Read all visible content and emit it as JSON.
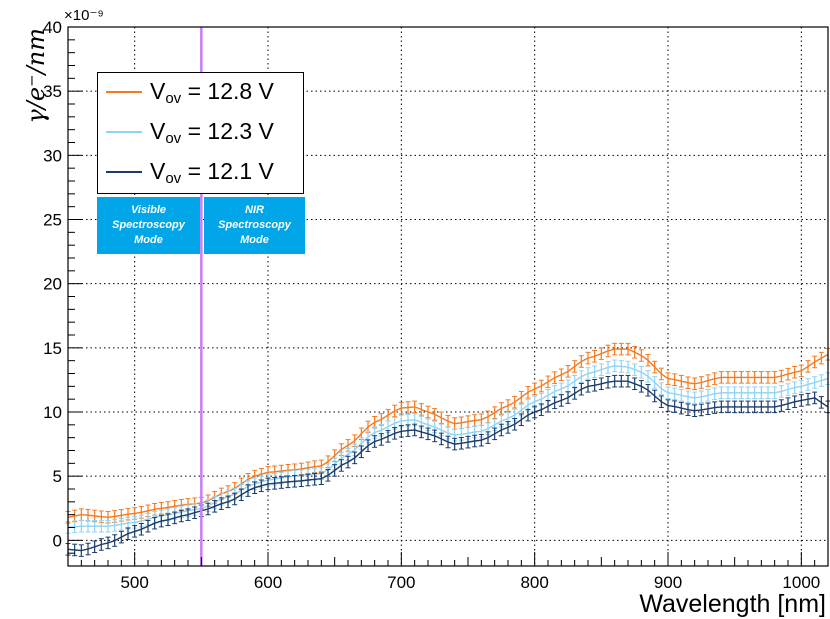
{
  "chart_data": {
    "type": "line",
    "title": "",
    "xlabel": "Wavelength [nm]",
    "ylabel": "γ/e⁻/nm",
    "y_multiplier": "×10⁻⁹",
    "xlim": [
      450,
      1020
    ],
    "ylim": [
      -2,
      40
    ],
    "x_ticks": [
      500,
      600,
      700,
      800,
      900,
      1000
    ],
    "y_ticks": [
      0,
      5,
      10,
      15,
      20,
      25,
      30,
      35,
      40
    ],
    "grid": true,
    "legend_position": "top-left",
    "vertical_marker": {
      "x": 550,
      "color": "#c77dff"
    },
    "annotations": [
      {
        "lines": [
          "Visible",
          "Spectroscopy",
          "Mode"
        ]
      },
      {
        "lines": [
          "NIR",
          "Spectroscopy",
          "Mode"
        ]
      }
    ],
    "knots_x": [
      450,
      460,
      480,
      500,
      520,
      540,
      550,
      570,
      590,
      600,
      620,
      640,
      660,
      680,
      700,
      710,
      720,
      740,
      760,
      780,
      800,
      820,
      840,
      860,
      870,
      880,
      900,
      920,
      940,
      960,
      980,
      1000,
      1010,
      1020
    ],
    "series": [
      {
        "name_main": "V",
        "name_sub": "ov",
        "name_rest": " = 12.8 V",
        "color": "#f57a1f",
        "y": [
          1.8,
          2.0,
          1.8,
          2.1,
          2.5,
          2.8,
          2.9,
          3.8,
          5.0,
          5.3,
          5.5,
          5.8,
          7.4,
          9.2,
          10.3,
          10.4,
          10.0,
          9.1,
          9.4,
          10.5,
          11.8,
          12.9,
          14.2,
          14.9,
          14.9,
          14.4,
          12.6,
          12.2,
          12.7,
          12.7,
          12.7,
          13.2,
          13.9,
          14.5
        ]
      },
      {
        "name_main": "V",
        "name_sub": "ov",
        "name_rest": " = 12.3 V",
        "color": "#8fd3f5",
        "y": [
          1.0,
          1.1,
          1.1,
          1.4,
          1.9,
          2.3,
          2.5,
          3.4,
          4.4,
          4.7,
          5.0,
          5.2,
          6.7,
          8.4,
          9.3,
          9.4,
          9.0,
          8.2,
          8.5,
          9.5,
          10.8,
          11.8,
          13.0,
          13.6,
          13.5,
          13.1,
          11.5,
          11.1,
          11.5,
          11.5,
          11.5,
          12.0,
          12.3,
          12.6
        ]
      },
      {
        "name_main": "V",
        "name_sub": "ov",
        "name_rest": " = 12.1 V",
        "color": "#1b3c6b",
        "y": [
          -0.7,
          -0.8,
          -0.2,
          0.7,
          1.5,
          2.0,
          2.3,
          3.0,
          4.1,
          4.4,
          4.6,
          4.8,
          6.1,
          7.7,
          8.5,
          8.6,
          8.3,
          7.5,
          7.8,
          8.8,
          10.0,
          10.9,
          12.0,
          12.4,
          12.4,
          12.0,
          10.5,
          10.1,
          10.4,
          10.4,
          10.4,
          10.9,
          11.1,
          10.4
        ]
      }
    ]
  }
}
